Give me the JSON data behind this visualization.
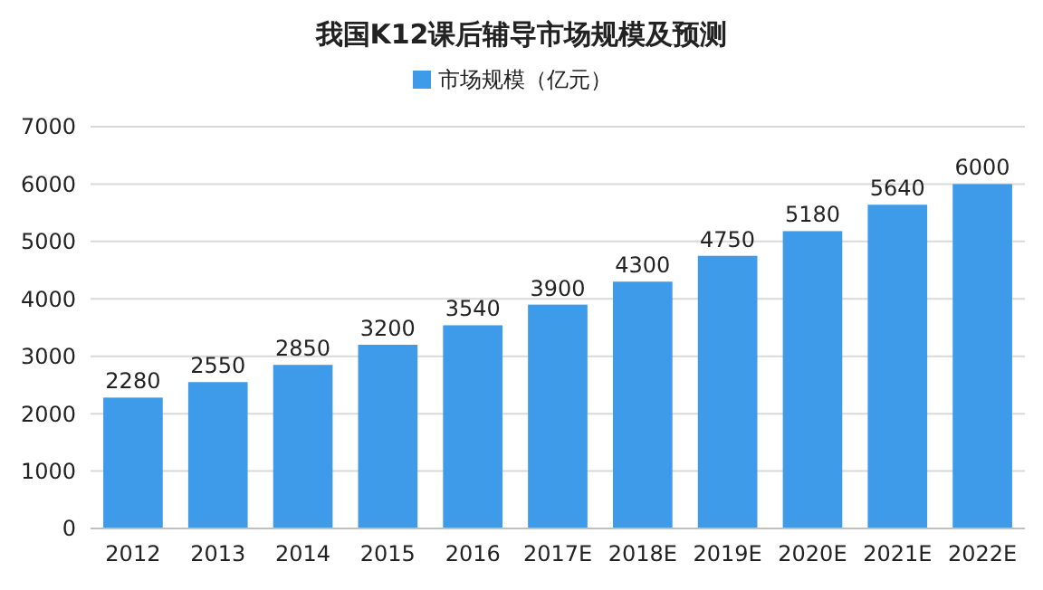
{
  "chart_data": {
    "type": "bar",
    "title": "我国K12课后辅导市场规模及预测",
    "categories": [
      "2012",
      "2013",
      "2014",
      "2015",
      "2016",
      "2017E",
      "2018E",
      "2019E",
      "2020E",
      "2021E",
      "2022E"
    ],
    "series": [
      {
        "name": "市场规模（亿元）",
        "color": "#3d9be9",
        "values": [
          2280,
          2550,
          2850,
          3200,
          3540,
          3900,
          4300,
          4750,
          5180,
          5640,
          6000
        ]
      }
    ],
    "ylim": [
      0,
      7000
    ],
    "yticks": [
      0,
      1000,
      2000,
      3000,
      4000,
      5000,
      6000,
      7000
    ],
    "grid": "y",
    "legend": "top",
    "data_labels": true
  }
}
